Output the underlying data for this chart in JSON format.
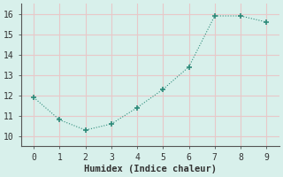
{
  "x": [
    0,
    1,
    2,
    3,
    4,
    5,
    6,
    7,
    8,
    9
  ],
  "y": [
    11.9,
    10.8,
    10.3,
    10.6,
    11.4,
    12.3,
    13.4,
    15.9,
    15.9,
    15.6
  ],
  "xlabel": "Humidex (Indice chaleur)",
  "xlim": [
    -0.5,
    9.5
  ],
  "ylim": [
    9.5,
    16.5
  ],
  "yticks": [
    10,
    11,
    12,
    13,
    14,
    15,
    16
  ],
  "xticks": [
    0,
    1,
    2,
    3,
    4,
    5,
    6,
    7,
    8,
    9
  ],
  "line_color": "#2d8b7a",
  "marker_color": "#2d8b7a",
  "bg_color": "#d8f0eb",
  "grid_color": "#e8c8c8",
  "axis_color": "#888888",
  "xlabel_fontsize": 7.5,
  "tick_fontsize": 7
}
